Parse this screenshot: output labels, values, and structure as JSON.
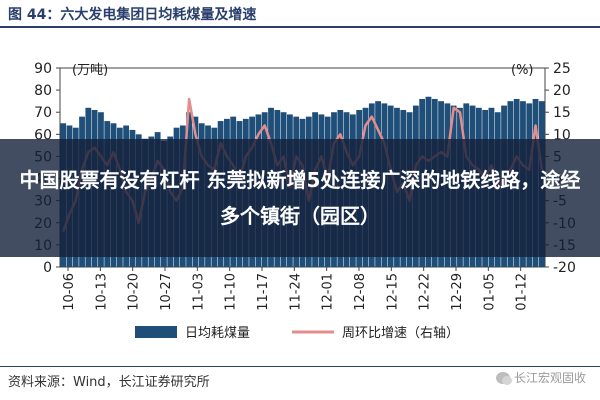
{
  "figure_title": "图 44：六大发电集团日均耗煤量及增速",
  "source": "资料来源：Wind，长江证券研究所",
  "watermark": "长江宏观固收",
  "overlay_text": "中国股票有没有杠杆 东莞拟新增5处连接广深的地铁线路，途经多个镇街（园区）",
  "colors": {
    "bar": "#1f4e79",
    "line": "#e58d8d",
    "title": "#2a3f6b",
    "overlay": "#14203a"
  },
  "chart_data": {
    "type": "bar",
    "title": "",
    "left_unit_label": "(万吨)",
    "right_unit_label": "(%)",
    "ylim_left": [
      0,
      90
    ],
    "ylim_right": [
      -20,
      25
    ],
    "left_ticks": [
      0,
      10,
      20,
      30,
      40,
      50,
      60,
      70,
      80,
      90
    ],
    "right_ticks": [
      -20,
      -15,
      -10,
      -5,
      0,
      5,
      10,
      15,
      20,
      25
    ],
    "x_tick_labels": [
      "10-06",
      "10-13",
      "10-20",
      "10-27",
      "11-03",
      "11-10",
      "11-17",
      "11-24",
      "12-01",
      "12-08",
      "12-15",
      "12-22",
      "12-29",
      "01-05",
      "01-12"
    ],
    "legend": {
      "bar": "日均耗煤量",
      "line": "周环比增速（右轴）"
    },
    "series": [
      {
        "name": "日均耗煤量",
        "kind": "bar",
        "values": [
          65,
          64,
          63,
          68,
          72,
          71,
          70,
          66,
          65,
          63,
          64,
          62,
          60,
          58,
          59,
          61,
          57,
          59,
          63,
          64,
          70,
          68,
          65,
          64,
          63,
          66,
          67,
          68,
          66,
          67,
          68,
          69,
          70,
          72,
          71,
          70,
          69,
          68,
          67,
          68,
          70,
          69,
          68,
          70,
          71,
          70,
          69,
          71,
          72,
          74,
          75,
          74,
          73,
          72,
          71,
          70,
          73,
          76,
          77,
          76,
          75,
          74,
          73,
          72,
          74,
          73,
          72,
          71,
          72,
          70,
          73,
          75,
          76,
          75,
          74,
          76,
          75
        ]
      },
      {
        "name": "周环比增速（右轴）",
        "kind": "line",
        "values": [
          -12,
          -8,
          -5,
          2,
          6,
          7,
          5,
          3,
          6,
          2,
          -3,
          -5,
          -10,
          -3,
          0,
          4,
          2,
          -3,
          -5,
          -2,
          18,
          10,
          5,
          3,
          2,
          8,
          5,
          3,
          0,
          5,
          7,
          10,
          12,
          8,
          3,
          5,
          -2,
          5,
          3,
          -5,
          2,
          5,
          0,
          8,
          10,
          6,
          3,
          5,
          12,
          14,
          11,
          8,
          2,
          -3,
          -1,
          -5,
          3,
          5,
          4,
          5,
          6,
          5,
          16,
          15,
          5,
          3,
          2,
          0,
          3,
          -2,
          0,
          2,
          5,
          3,
          2,
          12,
          2
        ]
      }
    ]
  }
}
